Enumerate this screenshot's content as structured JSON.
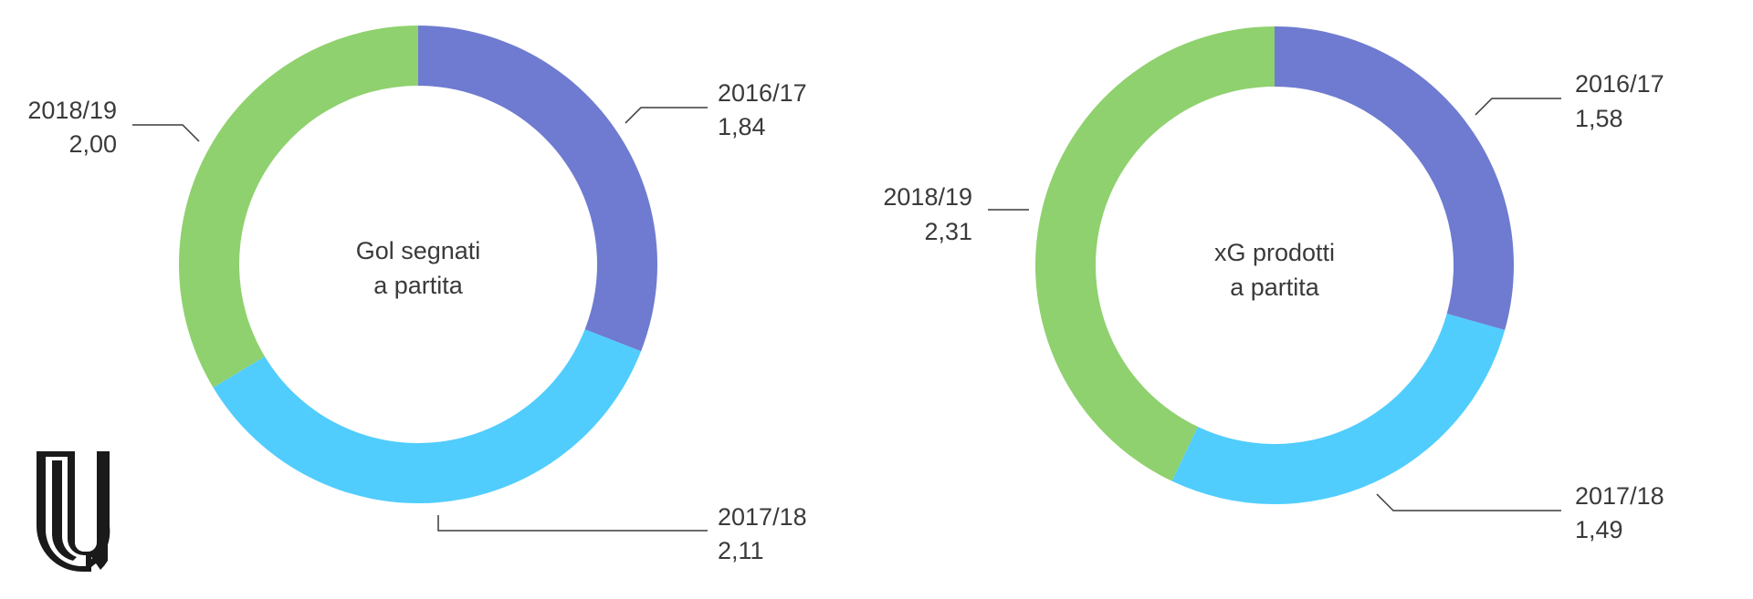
{
  "chart_data": [
    {
      "type": "pie",
      "donut": true,
      "center_label": [
        "Gol segnati",
        "a partita"
      ],
      "categories": [
        "2016/17",
        "2017/18",
        "2018/19"
      ],
      "values": [
        1.84,
        2.11,
        2.0
      ],
      "value_labels": [
        "1,84",
        "2,11",
        "2,00"
      ],
      "colors": [
        "#6f7bd0",
        "#50cdfd",
        "#8fd16e"
      ]
    },
    {
      "type": "pie",
      "donut": true,
      "center_label": [
        "xG prodotti",
        "a partita"
      ],
      "categories": [
        "2016/17",
        "2017/18",
        "2018/19"
      ],
      "values": [
        1.58,
        1.49,
        2.31
      ],
      "value_labels": [
        "1,58",
        "1,49",
        "2,31"
      ],
      "colors": [
        "#6f7bd0",
        "#50cdfd",
        "#8fd16e"
      ]
    }
  ],
  "logo": {
    "name": "U-logo",
    "color": "#1a1a1a"
  }
}
